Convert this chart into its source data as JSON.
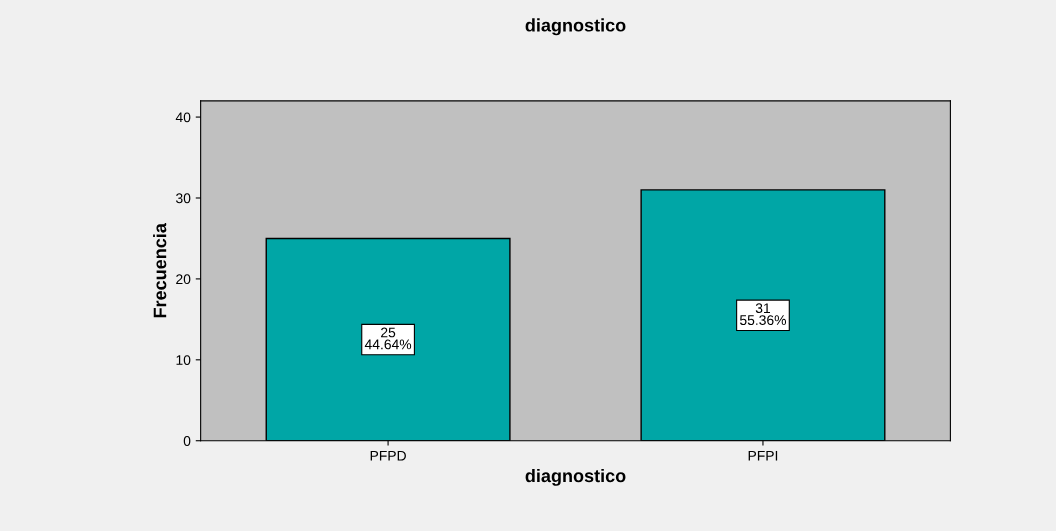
{
  "chart_data": {
    "type": "bar",
    "title": "diagnostico",
    "xlabel": "diagnostico",
    "ylabel": "Frecuencia",
    "categories": [
      "PFPD",
      "PFPI"
    ],
    "values": [
      25,
      31
    ],
    "color": "#00a6a6",
    "value_labels": [
      "25\n44.64%",
      "31\n55.36%"
    ],
    "ylim": [
      0,
      42
    ],
    "yticks": [
      0,
      10,
      20,
      30,
      40
    ],
    "grid": false,
    "legend": false
  }
}
